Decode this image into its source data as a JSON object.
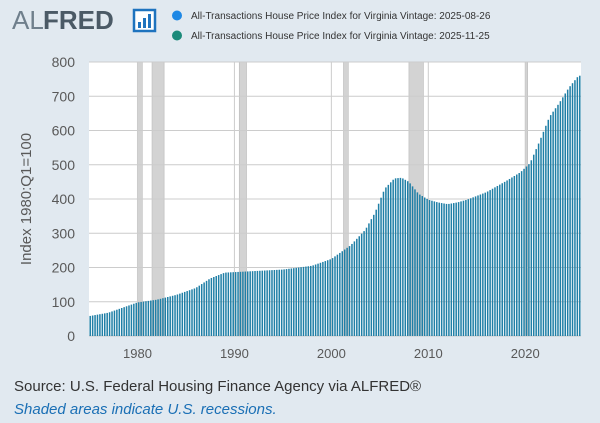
{
  "logo": {
    "text_al": "AL",
    "text_fred": "FRED"
  },
  "legend": [
    {
      "label": "All-Transactions House Price Index for Virginia Vintage: 2025-08-26",
      "color": "#1e88e5"
    },
    {
      "label": "All-Transactions House Price Index for Virginia Vintage: 2025-11-25",
      "color": "#1b8a7a"
    }
  ],
  "footer": {
    "source": "Source: U.S. Federal Housing Finance Agency via ALFRED®",
    "note": "Shaded areas indicate U.S. recessions."
  },
  "colors": {
    "bar": "#1f7fa6",
    "recession": "#d3d3d3",
    "plot_bg": "#ffffff",
    "grid": "#cccccc"
  },
  "chart_data": {
    "type": "bar",
    "title": "",
    "xlabel": "",
    "ylabel": "Index 1980:Q1=100",
    "ylim": [
      0,
      800
    ],
    "yticks": [
      0,
      100,
      200,
      300,
      400,
      500,
      600,
      700,
      800
    ],
    "xticks": [
      1980,
      1990,
      2000,
      2010,
      2020
    ],
    "xlim": [
      1975.0,
      2025.75
    ],
    "frequency": "quarterly",
    "start": 1975.0,
    "recessions": [
      [
        1980.0,
        1980.5
      ],
      [
        1981.5,
        1982.75
      ],
      [
        1990.5,
        1991.25
      ],
      [
        2001.25,
        2001.75
      ],
      [
        2008.0,
        2009.5
      ],
      [
        2020.0,
        2020.25
      ]
    ],
    "series": [
      {
        "name": "All-Transactions House Price Index for Virginia Vintage: 2025-11-25",
        "keypoints": [
          [
            1975.0,
            58
          ],
          [
            1977.0,
            68
          ],
          [
            1979.0,
            88
          ],
          [
            1980.0,
            98
          ],
          [
            1982.0,
            106
          ],
          [
            1984.0,
            120
          ],
          [
            1986.0,
            140
          ],
          [
            1987.5,
            168
          ],
          [
            1989.0,
            185
          ],
          [
            1991.0,
            188
          ],
          [
            1995.0,
            194
          ],
          [
            1998.0,
            205
          ],
          [
            2000.0,
            225
          ],
          [
            2002.0,
            265
          ],
          [
            2003.5,
            310
          ],
          [
            2004.5,
            360
          ],
          [
            2005.5,
            430
          ],
          [
            2006.5,
            460
          ],
          [
            2007.25,
            462
          ],
          [
            2008.0,
            450
          ],
          [
            2009.0,
            415
          ],
          [
            2010.0,
            398
          ],
          [
            2011.0,
            390
          ],
          [
            2012.0,
            385
          ],
          [
            2013.0,
            390
          ],
          [
            2014.0,
            398
          ],
          [
            2016.0,
            420
          ],
          [
            2018.0,
            452
          ],
          [
            2019.5,
            478
          ],
          [
            2020.5,
            505
          ],
          [
            2021.5,
            570
          ],
          [
            2022.5,
            640
          ],
          [
            2023.5,
            680
          ],
          [
            2024.5,
            725
          ],
          [
            2025.5,
            760
          ]
        ]
      }
    ]
  }
}
